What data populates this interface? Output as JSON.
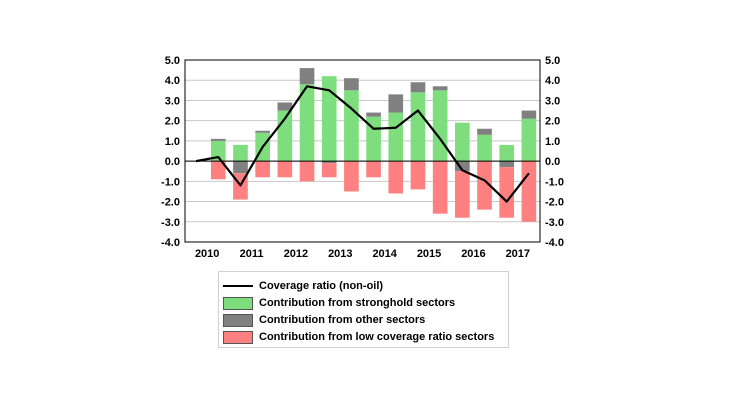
{
  "chart_data": {
    "type": "bar",
    "title": "",
    "xlabel": "",
    "ylabel": "",
    "ylim": [
      -4.0,
      5.0
    ],
    "grid": true,
    "y_ticks": [
      "5.0",
      "4.0",
      "3.0",
      "2.0",
      "1.0",
      "0.0",
      "-1.0",
      "-2.0",
      "-3.0",
      "-4.0"
    ],
    "x_tick_labels": [
      "2010",
      "2011",
      "2012",
      "2013",
      "2014",
      "2015",
      "2016",
      "2017"
    ],
    "categories": [
      "2010 H1",
      "2010 H2",
      "2011 H1",
      "2011 H2",
      "2012 H1",
      "2012 H2",
      "2013 H1",
      "2013 H2",
      "2014 H1",
      "2014 H2",
      "2015 H1",
      "2015 H2",
      "2016 H1",
      "2016 H2",
      "2017 H1",
      "2017 H2"
    ],
    "series": [
      {
        "name": "Contribution from stronghold sectors",
        "kind": "bar",
        "color": "#7ede7e",
        "values": [
          null,
          1.0,
          0.8,
          1.4,
          2.5,
          3.8,
          4.2,
          3.5,
          2.2,
          2.4,
          3.4,
          3.5,
          1.9,
          1.3,
          0.8,
          2.1
        ]
      },
      {
        "name": "Contribution from other sectors",
        "kind": "bar",
        "color": "#808080",
        "values": [
          null,
          0.1,
          -0.6,
          0.1,
          0.4,
          0.8,
          -0.1,
          0.6,
          0.2,
          0.9,
          0.5,
          0.2,
          -0.5,
          0.3,
          -0.3,
          0.4
        ]
      },
      {
        "name": "Contribution from low coverage ratio sectors",
        "kind": "bar",
        "color": "#ff8080",
        "values": [
          null,
          -0.9,
          -1.3,
          -0.8,
          -0.8,
          -1.0,
          -0.7,
          -1.5,
          -0.8,
          -1.6,
          -1.4,
          -2.6,
          -2.3,
          -2.4,
          -2.5,
          -3.0
        ]
      },
      {
        "name": "Coverage ratio (non-oil)",
        "kind": "line",
        "color": "#000000",
        "values": [
          0.0,
          0.2,
          -1.2,
          0.7,
          2.1,
          3.7,
          3.5,
          2.6,
          1.6,
          1.65,
          2.5,
          1.1,
          -0.45,
          -0.95,
          -2.0,
          -0.6
        ]
      }
    ]
  }
}
